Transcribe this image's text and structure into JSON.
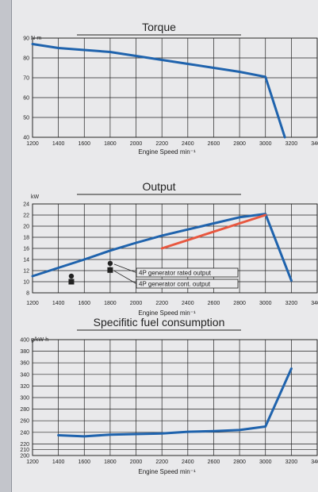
{
  "colors": {
    "line": "#1f63ad",
    "accent": "#e8573f",
    "grid": "#222222",
    "background": "#e9e9eb",
    "marker": "#222222"
  },
  "chart_data": [
    {
      "type": "line",
      "title": "Torque",
      "xlabel": "Engine Speed min⁻¹",
      "ylabel": "N·m",
      "xlim": [
        1200,
        3400
      ],
      "ylim": [
        40,
        90
      ],
      "xticks": [
        1200,
        1400,
        1600,
        1800,
        2000,
        2200,
        2400,
        2600,
        2800,
        3000,
        3200,
        3400
      ],
      "yticks": [
        40,
        50,
        60,
        70,
        80,
        90
      ],
      "grid": true,
      "series": [
        {
          "color": "#1f63ad",
          "x": [
            1200,
            1400,
            1600,
            1800,
            2000,
            2200,
            2400,
            2600,
            2800,
            3000,
            3150
          ],
          "y": [
            87,
            85,
            84,
            83,
            81,
            79,
            77,
            75,
            73,
            70.5,
            40
          ]
        }
      ]
    },
    {
      "type": "line",
      "title": "Output",
      "xlabel": "Engine Speed min⁻¹",
      "ylabel": "kW",
      "xlim": [
        1200,
        3400
      ],
      "ylim": [
        8,
        24
      ],
      "xticks": [
        1200,
        1400,
        1600,
        1800,
        2000,
        2200,
        2400,
        2600,
        2800,
        3000,
        3200,
        3400
      ],
      "yticks": [
        8,
        10,
        12,
        14,
        16,
        18,
        20,
        22,
        24
      ],
      "grid": true,
      "series": [
        {
          "color": "#1f63ad",
          "x": [
            1200,
            1400,
            1600,
            1800,
            2000,
            2200,
            2400,
            2600,
            2800,
            3000,
            3200
          ],
          "y": [
            11,
            12.5,
            14,
            15.6,
            17,
            18.3,
            19.4,
            20.5,
            21.6,
            22.2,
            10.2
          ]
        },
        {
          "color": "#e8573f",
          "x": [
            2200,
            3000
          ],
          "y": [
            16,
            22
          ]
        }
      ],
      "markers": [
        {
          "shape": "circle",
          "x": 1500,
          "y": 11
        },
        {
          "shape": "square",
          "x": 1500,
          "y": 10
        },
        {
          "shape": "circle",
          "x": 1800,
          "y": 13.3
        },
        {
          "shape": "square",
          "x": 1800,
          "y": 12.1
        }
      ],
      "annotations": [
        "4P generator rated output",
        "4P generator cont. output"
      ]
    },
    {
      "type": "line",
      "title": "Specifitic fuel consumption",
      "xlabel": "Engine Speed min⁻¹",
      "ylabel": "g/kW·h",
      "xlim": [
        1200,
        3400
      ],
      "ylim": [
        200,
        400
      ],
      "xticks": [
        1200,
        1400,
        1600,
        1800,
        2000,
        2200,
        2400,
        2600,
        2800,
        3000,
        3200,
        3400
      ],
      "yticks": [
        200,
        210,
        220,
        240,
        260,
        280,
        300,
        320,
        340,
        360,
        380,
        400
      ],
      "grid": true,
      "series": [
        {
          "color": "#1f63ad",
          "x": [
            1400,
            1600,
            1800,
            2000,
            2200,
            2400,
            2600,
            2800,
            3000,
            3200
          ],
          "y": [
            235,
            233,
            236,
            237,
            238,
            241,
            242,
            244,
            250,
            350
          ]
        }
      ]
    }
  ]
}
